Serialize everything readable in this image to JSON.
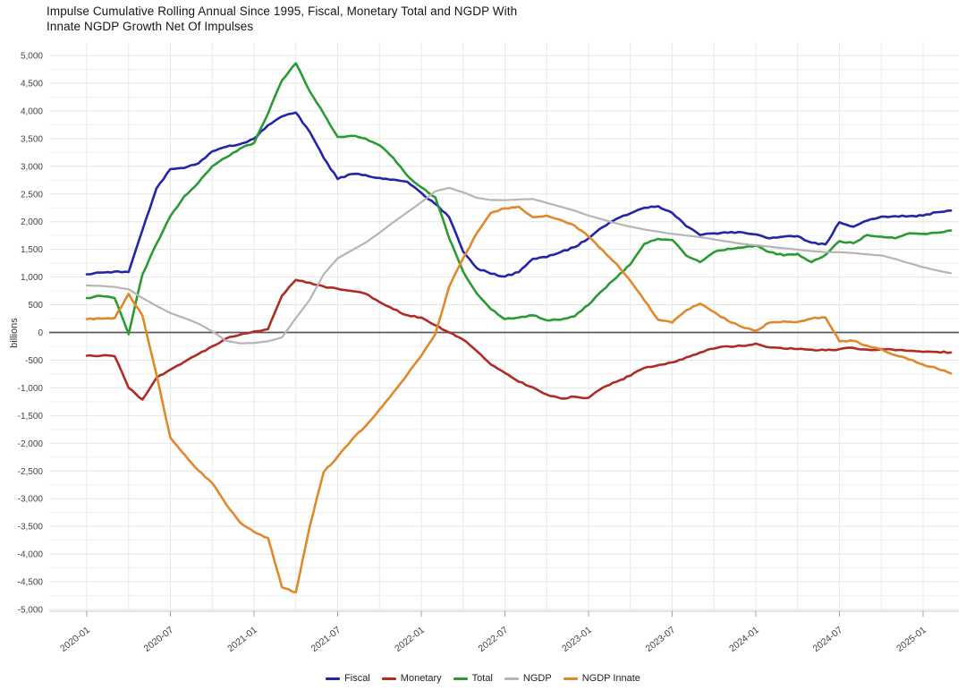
{
  "header": {
    "title_lines": [
      "Impulse Cumulative Rolling Annual Since 1995, Fiscal, Monetary Total and NGDP With",
      "Innate NGDP Growth Net Of Impulses"
    ]
  },
  "chart_data": {
    "type": "line",
    "title": "Impulse Cumulative Rolling Annual Since 1995, Fiscal, Monetary Total and NGDP With Innate NGDP Growth Net Of Impulses",
    "xlabel": "",
    "ylabel": "billions",
    "ylim": [
      -5000,
      5000
    ],
    "y_tick_step": 500,
    "y_minor_grid_step": 250,
    "x_tick_every_months": 6,
    "x_minor_grid_every_months": 3,
    "grid": true,
    "legend_position": "bottom-center",
    "colors": {
      "grid_minor": "#efefef",
      "grid_major": "#e4e4e4",
      "grid_vertical": "#e9e9e9",
      "zero_line": "#5a5a5a",
      "axis_line": "#c8c8c8",
      "tick_mark": "#a0a0a0",
      "tick_label": "#444444",
      "title_text": "#161616"
    },
    "x": [
      "2020-01",
      "2020-02",
      "2020-03",
      "2020-04",
      "2020-05",
      "2020-06",
      "2020-07",
      "2020-08",
      "2020-09",
      "2020-10",
      "2020-11",
      "2020-12",
      "2021-01",
      "2021-02",
      "2021-03",
      "2021-04",
      "2021-05",
      "2021-06",
      "2021-07",
      "2021-08",
      "2021-09",
      "2021-10",
      "2021-11",
      "2021-12",
      "2022-01",
      "2022-02",
      "2022-03",
      "2022-04",
      "2022-05",
      "2022-06",
      "2022-07",
      "2022-08",
      "2022-09",
      "2022-10",
      "2022-11",
      "2022-12",
      "2023-01",
      "2023-02",
      "2023-03",
      "2023-04",
      "2023-05",
      "2023-06",
      "2023-07",
      "2023-08",
      "2023-09",
      "2023-10",
      "2023-11",
      "2023-12",
      "2024-01",
      "2024-02",
      "2024-03",
      "2024-04",
      "2024-05",
      "2024-06",
      "2024-07",
      "2024-08",
      "2024-09",
      "2024-10",
      "2024-11",
      "2024-12",
      "2025-01",
      "2025-02",
      "2025-03"
    ],
    "x_tick_labels": [
      "2020-01",
      "2020-07",
      "2021-01",
      "2021-07",
      "2022-01",
      "2022-07",
      "2023-01",
      "2023-07",
      "2024-01",
      "2024-07",
      "2025-01"
    ],
    "series": [
      {
        "name": "Fiscal",
        "color": "#2424aa",
        "values": [
          1050,
          1080,
          1100,
          1090,
          1850,
          2600,
          2950,
          2970,
          3050,
          3270,
          3350,
          3400,
          3500,
          3740,
          3900,
          3970,
          3620,
          3150,
          2770,
          2860,
          2840,
          2790,
          2760,
          2720,
          2520,
          2320,
          2080,
          1460,
          1160,
          1060,
          1010,
          1090,
          1330,
          1360,
          1450,
          1540,
          1700,
          1900,
          2050,
          2150,
          2250,
          2280,
          2160,
          1920,
          1760,
          1790,
          1800,
          1810,
          1770,
          1700,
          1730,
          1740,
          1620,
          1590,
          1990,
          1910,
          2020,
          2090,
          2100,
          2100,
          2110,
          2170,
          2200
        ]
      },
      {
        "name": "Monetary",
        "color": "#ae2c23",
        "values": [
          -420,
          -420,
          -430,
          -1000,
          -1210,
          -820,
          -670,
          -530,
          -390,
          -250,
          -110,
          -40,
          20,
          60,
          660,
          950,
          900,
          830,
          790,
          750,
          700,
          550,
          420,
          310,
          270,
          130,
          0,
          -130,
          -340,
          -580,
          -730,
          -890,
          -990,
          -1120,
          -1190,
          -1160,
          -1180,
          -1000,
          -890,
          -780,
          -640,
          -590,
          -540,
          -450,
          -360,
          -290,
          -250,
          -240,
          -200,
          -270,
          -290,
          -300,
          -310,
          -320,
          -300,
          -280,
          -310,
          -300,
          -320,
          -330,
          -350,
          -350,
          -360
        ]
      },
      {
        "name": "Total",
        "color": "#2b9a32",
        "values": [
          620,
          660,
          620,
          -30,
          1050,
          1600,
          2100,
          2460,
          2700,
          3000,
          3160,
          3320,
          3420,
          3950,
          4550,
          4860,
          4350,
          3950,
          3530,
          3550,
          3500,
          3380,
          3150,
          2830,
          2620,
          2440,
          1700,
          1100,
          700,
          420,
          240,
          270,
          310,
          220,
          230,
          290,
          500,
          760,
          990,
          1230,
          1600,
          1690,
          1670,
          1390,
          1270,
          1450,
          1510,
          1530,
          1570,
          1450,
          1390,
          1420,
          1270,
          1400,
          1650,
          1610,
          1760,
          1730,
          1700,
          1790,
          1780,
          1800,
          1840
        ]
      },
      {
        "name": "NGDP",
        "color": "#b5b5b5",
        "values": [
          850,
          840,
          820,
          780,
          620,
          480,
          350,
          260,
          160,
          20,
          -150,
          -195,
          -190,
          -160,
          -90,
          260,
          590,
          1050,
          1340,
          1480,
          1620,
          1800,
          1990,
          2170,
          2350,
          2550,
          2610,
          2530,
          2430,
          2390,
          2390,
          2400,
          2410,
          2340,
          2270,
          2200,
          2110,
          2040,
          1970,
          1910,
          1860,
          1820,
          1780,
          1750,
          1720,
          1680,
          1640,
          1600,
          1575,
          1550,
          1520,
          1495,
          1470,
          1450,
          1450,
          1435,
          1410,
          1390,
          1330,
          1250,
          1180,
          1120,
          1070
        ]
      },
      {
        "name": "NGDP Innate",
        "color": "#e0892b",
        "values": [
          240,
          250,
          260,
          700,
          300,
          -760,
          -1900,
          -2200,
          -2490,
          -2720,
          -3100,
          -3430,
          -3600,
          -3710,
          -4600,
          -4690,
          -3500,
          -2520,
          -2240,
          -1940,
          -1690,
          -1390,
          -1080,
          -760,
          -420,
          -30,
          830,
          1340,
          1800,
          2160,
          2240,
          2270,
          2080,
          2110,
          2030,
          1930,
          1730,
          1490,
          1240,
          930,
          580,
          230,
          180,
          400,
          520,
          370,
          210,
          100,
          30,
          180,
          200,
          190,
          250,
          270,
          -160,
          -150,
          -240,
          -300,
          -410,
          -490,
          -580,
          -650,
          -740
        ]
      }
    ]
  }
}
